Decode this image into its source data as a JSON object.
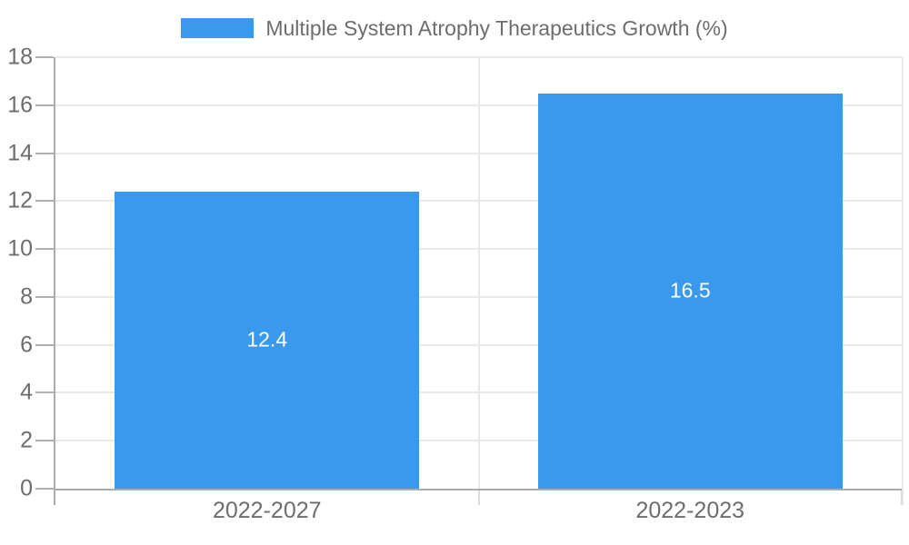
{
  "legend": {
    "label": "Multiple System Atrophy Therapeutics Growth (%)"
  },
  "colors": {
    "bar": "#3999EC",
    "axis": "#ababab",
    "grid": "#e9e9e9",
    "tick": "#b0b0b0",
    "subtick": "#dcdcdc",
    "text": "#6d6d6d",
    "value_text": "#ffffff",
    "background": "#ffffff"
  },
  "chart_data": {
    "type": "bar",
    "categories": [
      "2022-2027",
      "2022-2023"
    ],
    "values": [
      12.4,
      16.5
    ],
    "value_labels": [
      "12.4",
      "16.5"
    ],
    "title": "Multiple System Atrophy Therapeutics Growth (%)",
    "xlabel": "",
    "ylabel": "",
    "ylim": [
      0,
      18
    ],
    "ytick_step": 2,
    "yticks": [
      0,
      2,
      4,
      6,
      8,
      10,
      12,
      14,
      16,
      18
    ],
    "grid": true,
    "legend_position": "top",
    "bar_color": "#3999EC",
    "bar_width_fraction": 0.72
  }
}
